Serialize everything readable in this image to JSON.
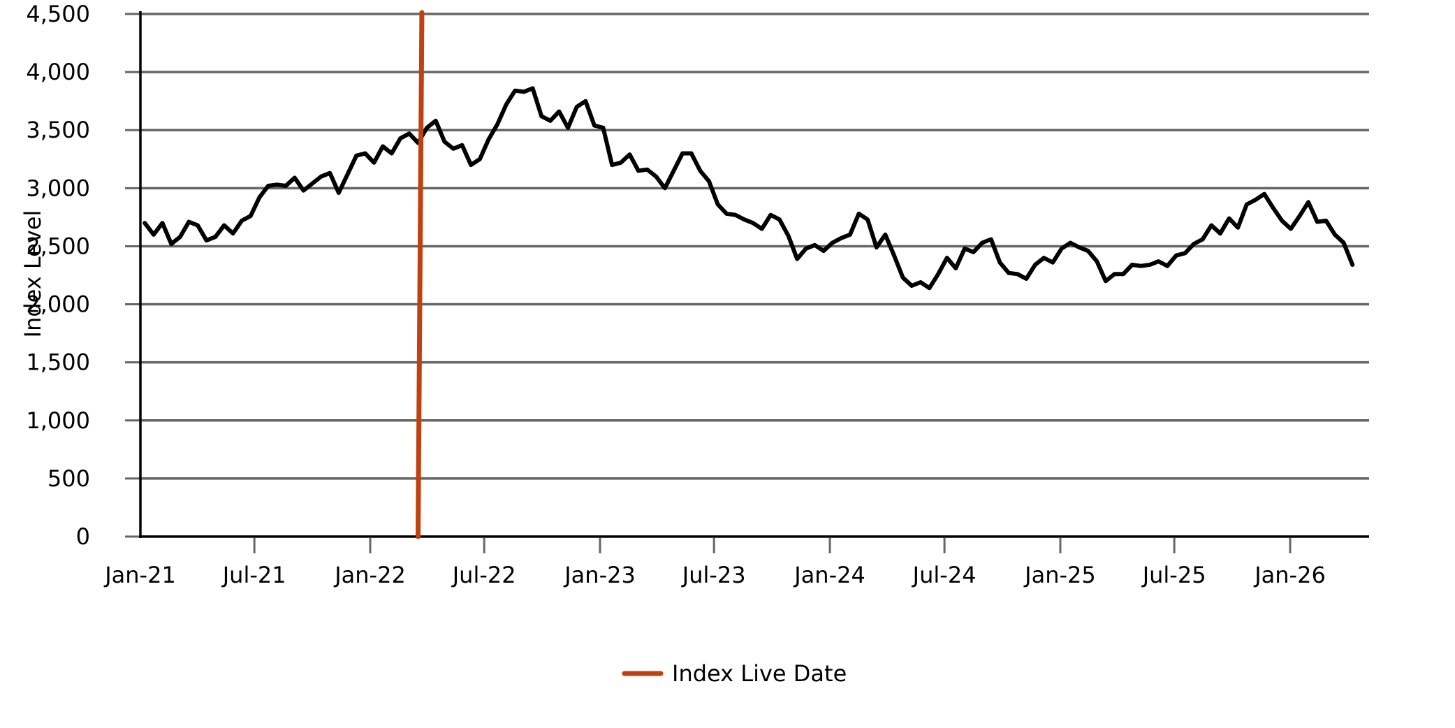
{
  "chart_data": {
    "type": "line",
    "title": "",
    "xlabel": "",
    "ylabel": "Index Level",
    "ylim": [
      0,
      4500
    ],
    "yticks": [
      0,
      500,
      1000,
      1500,
      2000,
      2500,
      3000,
      3500,
      4000,
      4500
    ],
    "ytick_labels": [
      "0",
      "500",
      "1,000",
      "1,500",
      "2,000",
      "2,500",
      "3,000",
      "3,500",
      "4,000",
      "4,500"
    ],
    "xlim": [
      "2021-01-01",
      "2026-06-15"
    ],
    "xticks": [
      "2021-01-01",
      "2021-07-01",
      "2022-01-01",
      "2022-07-01",
      "2023-01-01",
      "2023-07-01",
      "2024-01-01",
      "2024-07-01",
      "2025-01-01",
      "2025-07-01",
      "2026-01-01"
    ],
    "xtick_labels": [
      "Jan-21",
      "Jul-21",
      "Jan-22",
      "Jul-22",
      "Jan-23",
      "Jul-23",
      "Jan-24",
      "Jul-24",
      "Jan-25",
      "Jul-25",
      "Jan-26"
    ],
    "grid": true,
    "legend_position": "bottom-center",
    "series": [
      {
        "color": "#000000",
        "points": [
          [
            "2021-01-08",
            2700
          ],
          [
            "2021-01-22",
            2600
          ],
          [
            "2021-02-05",
            2700
          ],
          [
            "2021-02-19",
            2520
          ],
          [
            "2021-03-05",
            2580
          ],
          [
            "2021-03-19",
            2710
          ],
          [
            "2021-04-02",
            2680
          ],
          [
            "2021-04-16",
            2550
          ],
          [
            "2021-04-30",
            2580
          ],
          [
            "2021-05-14",
            2680
          ],
          [
            "2021-05-28",
            2610
          ],
          [
            "2021-06-11",
            2720
          ],
          [
            "2021-06-25",
            2760
          ],
          [
            "2021-07-09",
            2920
          ],
          [
            "2021-07-23",
            3020
          ],
          [
            "2021-08-06",
            3030
          ],
          [
            "2021-08-20",
            3020
          ],
          [
            "2021-09-03",
            3090
          ],
          [
            "2021-09-17",
            2980
          ],
          [
            "2021-10-01",
            3040
          ],
          [
            "2021-10-15",
            3100
          ],
          [
            "2021-10-29",
            3130
          ],
          [
            "2021-11-12",
            2960
          ],
          [
            "2021-11-26",
            3120
          ],
          [
            "2021-12-10",
            3280
          ],
          [
            "2021-12-24",
            3300
          ],
          [
            "2022-01-07",
            3220
          ],
          [
            "2022-01-21",
            3360
          ],
          [
            "2022-02-04",
            3300
          ],
          [
            "2022-02-18",
            3430
          ],
          [
            "2022-03-04",
            3470
          ],
          [
            "2022-03-18",
            3390
          ],
          [
            "2022-04-01",
            3520
          ],
          [
            "2022-04-15",
            3580
          ],
          [
            "2022-04-29",
            3400
          ],
          [
            "2022-05-13",
            3340
          ],
          [
            "2022-05-27",
            3370
          ],
          [
            "2022-06-10",
            3200
          ],
          [
            "2022-06-24",
            3250
          ],
          [
            "2022-07-08",
            3420
          ],
          [
            "2022-07-22",
            3550
          ],
          [
            "2022-08-05",
            3720
          ],
          [
            "2022-08-19",
            3840
          ],
          [
            "2022-09-02",
            3830
          ],
          [
            "2022-09-16",
            3860
          ],
          [
            "2022-09-30",
            3620
          ],
          [
            "2022-10-14",
            3580
          ],
          [
            "2022-10-28",
            3660
          ],
          [
            "2022-11-11",
            3520
          ],
          [
            "2022-11-25",
            3700
          ],
          [
            "2022-12-09",
            3750
          ],
          [
            "2022-12-23",
            3540
          ],
          [
            "2023-01-06",
            3520
          ],
          [
            "2023-01-20",
            3200
          ],
          [
            "2023-02-03",
            3220
          ],
          [
            "2023-02-17",
            3290
          ],
          [
            "2023-03-03",
            3150
          ],
          [
            "2023-03-17",
            3160
          ],
          [
            "2023-03-31",
            3100
          ],
          [
            "2023-04-14",
            3000
          ],
          [
            "2023-04-28",
            3150
          ],
          [
            "2023-05-12",
            3300
          ],
          [
            "2023-05-26",
            3300
          ],
          [
            "2023-06-09",
            3150
          ],
          [
            "2023-06-23",
            3060
          ],
          [
            "2023-07-07",
            2860
          ],
          [
            "2023-07-21",
            2780
          ],
          [
            "2023-08-04",
            2770
          ],
          [
            "2023-08-18",
            2730
          ],
          [
            "2023-09-01",
            2700
          ],
          [
            "2023-09-15",
            2650
          ],
          [
            "2023-09-29",
            2770
          ],
          [
            "2023-10-13",
            2730
          ],
          [
            "2023-10-27",
            2590
          ],
          [
            "2023-11-10",
            2390
          ],
          [
            "2023-11-24",
            2480
          ],
          [
            "2023-12-08",
            2510
          ],
          [
            "2023-12-22",
            2460
          ],
          [
            "2024-01-05",
            2530
          ],
          [
            "2024-01-19",
            2570
          ],
          [
            "2024-02-02",
            2600
          ],
          [
            "2024-02-16",
            2780
          ],
          [
            "2024-03-01",
            2730
          ],
          [
            "2024-03-15",
            2490
          ],
          [
            "2024-03-29",
            2600
          ],
          [
            "2024-04-12",
            2420
          ],
          [
            "2024-04-26",
            2230
          ],
          [
            "2024-05-10",
            2160
          ],
          [
            "2024-05-24",
            2190
          ],
          [
            "2024-06-07",
            2140
          ],
          [
            "2024-06-21",
            2260
          ],
          [
            "2024-07-05",
            2400
          ],
          [
            "2024-07-19",
            2310
          ],
          [
            "2024-08-02",
            2480
          ],
          [
            "2024-08-16",
            2450
          ],
          [
            "2024-08-30",
            2530
          ],
          [
            "2024-09-13",
            2560
          ],
          [
            "2024-09-27",
            2360
          ],
          [
            "2024-10-11",
            2270
          ],
          [
            "2024-10-25",
            2260
          ],
          [
            "2024-11-08",
            2220
          ],
          [
            "2024-11-22",
            2340
          ],
          [
            "2024-12-06",
            2400
          ],
          [
            "2024-12-20",
            2360
          ],
          [
            "2025-01-03",
            2480
          ],
          [
            "2025-01-17",
            2530
          ],
          [
            "2025-01-31",
            2490
          ],
          [
            "2025-02-14",
            2460
          ],
          [
            "2025-02-28",
            2370
          ],
          [
            "2025-03-14",
            2200
          ],
          [
            "2025-03-28",
            2260
          ],
          [
            "2025-04-11",
            2260
          ],
          [
            "2025-04-25",
            2340
          ],
          [
            "2025-05-09",
            2330
          ],
          [
            "2025-05-23",
            2340
          ],
          [
            "2025-06-06",
            2370
          ],
          [
            "2025-06-20",
            2330
          ],
          [
            "2025-07-04",
            2420
          ],
          [
            "2025-07-18",
            2440
          ],
          [
            "2025-08-01",
            2520
          ],
          [
            "2025-08-15",
            2560
          ],
          [
            "2025-08-29",
            2680
          ],
          [
            "2025-09-12",
            2610
          ],
          [
            "2025-09-26",
            2740
          ],
          [
            "2025-10-10",
            2660
          ],
          [
            "2025-10-24",
            2860
          ],
          [
            "2025-11-07",
            2900
          ],
          [
            "2025-11-21",
            2950
          ],
          [
            "2025-12-05",
            2830
          ],
          [
            "2025-12-19",
            2720
          ],
          [
            "2026-01-02",
            2650
          ],
          [
            "2026-01-16",
            2760
          ],
          [
            "2026-01-30",
            2880
          ],
          [
            "2026-02-13",
            2710
          ],
          [
            "2026-02-27",
            2720
          ],
          [
            "2026-03-13",
            2600
          ],
          [
            "2026-03-27",
            2530
          ],
          [
            "2026-04-10",
            2340
          ]
        ]
      }
    ]
  },
  "vertical_marker": {
    "legend_label": "Index Live Date",
    "color": "#c0400f",
    "date_top": "2022-03-24",
    "date_bottom": "2022-03-18"
  }
}
